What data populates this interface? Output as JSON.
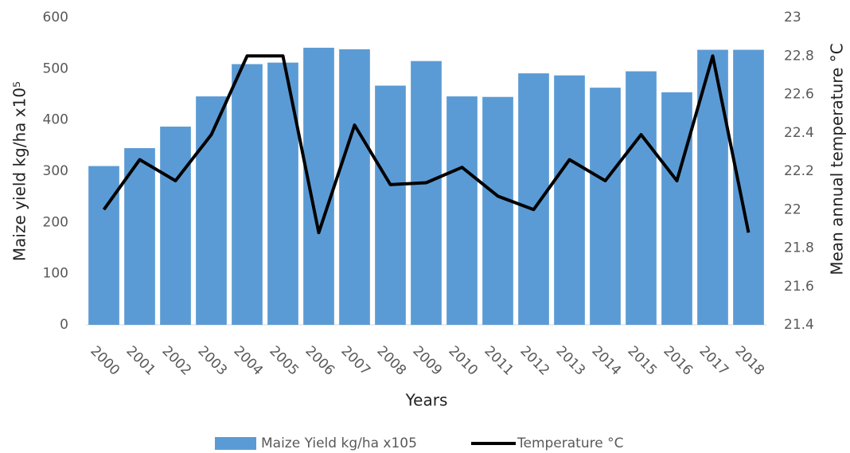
{
  "chart_data": {
    "type": "bar",
    "categories": [
      "2000",
      "2001",
      "2002",
      "2003",
      "2004",
      "2005",
      "2006",
      "2007",
      "2008",
      "2009",
      "2010",
      "2011",
      "2012",
      "2013",
      "2014",
      "2015",
      "2016",
      "2017",
      "2018"
    ],
    "series": [
      {
        "name": "Maize Yield kg/ha x105",
        "type": "bar",
        "color": "#5b9bd5",
        "values": [
          310,
          345,
          387,
          446,
          509,
          512,
          541,
          538,
          467,
          515,
          446,
          445,
          491,
          487,
          463,
          495,
          454,
          537,
          537
        ]
      },
      {
        "name": "Temperature °C",
        "type": "line",
        "axis": "y2",
        "color": "#000000",
        "values": [
          22.0,
          22.26,
          22.15,
          22.39,
          22.8,
          22.8,
          21.88,
          22.44,
          22.13,
          22.14,
          22.22,
          22.07,
          22.0,
          22.26,
          22.15,
          22.39,
          22.15,
          22.8,
          21.88
        ]
      }
    ],
    "xlabel": "Years",
    "ylabel": "Maize yield kg/ha x10⁵",
    "y2label": "Mean annual temperature °C",
    "ylim": [
      0,
      600
    ],
    "yticks": [
      0,
      100,
      200,
      300,
      400,
      500,
      600
    ],
    "y2lim": [
      21.4,
      23
    ],
    "y2ticks": [
      21.4,
      21.6,
      21.8,
      22,
      22.2,
      22.4,
      22.6,
      22.8,
      23
    ],
    "grid": false,
    "legend": "bottom"
  }
}
